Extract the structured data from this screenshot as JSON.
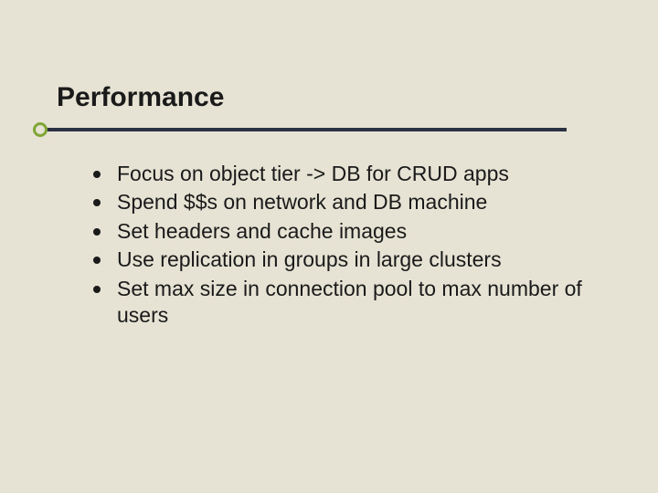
{
  "slide": {
    "title": "Performance",
    "bullets": [
      "Focus on object tier -> DB for CRUD apps",
      "Spend $$s on network and DB machine",
      "Set headers and cache images",
      "Use replication in groups in large clusters",
      "Set max size in connection pool to max number of users"
    ],
    "style": {
      "background_color": "#e6e3d4",
      "title_fontsize": 30,
      "title_weight": "bold",
      "title_color": "#1a1a1a",
      "body_fontsize": 23,
      "body_color": "#1a1a1a",
      "divider_line_color": "#2d3242",
      "divider_circle_border_color": "#7fa637",
      "bullet_marker_color": "#1a1a1a",
      "font_family": "Arial"
    }
  }
}
